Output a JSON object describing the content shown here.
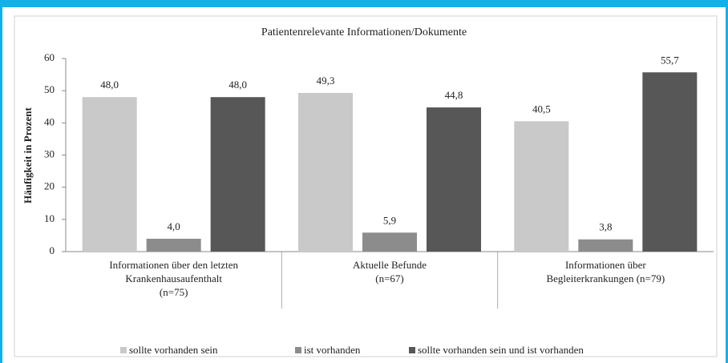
{
  "chart_data": {
    "type": "bar",
    "title": "Patientenrelevante Informationen/Dokumente",
    "y_label": "Häufigkeit in Prozent",
    "categories": [
      [
        "Informationen über den letzten",
        "Krankenhausaufenthalt",
        "(n=75)"
      ],
      [
        "Aktuelle Befunde",
        "(n=67)"
      ],
      [
        "Informationen über",
        "Begleiterkrankungen (n=79)"
      ]
    ],
    "series": [
      {
        "name": "sollte vorhanden sein",
        "color": "#c9c9c9",
        "values": [
          48.0,
          49.3,
          40.5
        ],
        "value_labels": [
          "48,0",
          "49,3",
          "40,5"
        ]
      },
      {
        "name": "ist vorhanden",
        "color": "#8c8c8c",
        "values": [
          4.0,
          5.9,
          3.8
        ],
        "value_labels": [
          "4,0",
          "5,9",
          "3,8"
        ]
      },
      {
        "name": "sollte vorhanden sein und ist vorhanden",
        "color": "#575757",
        "values": [
          48.0,
          44.8,
          55.7
        ],
        "value_labels": [
          "48,0",
          "44,8",
          "55,7"
        ]
      }
    ],
    "ylim": [
      0,
      60
    ],
    "yticks": [
      0,
      10,
      20,
      30,
      40,
      50,
      60
    ],
    "legend": "bottom"
  }
}
